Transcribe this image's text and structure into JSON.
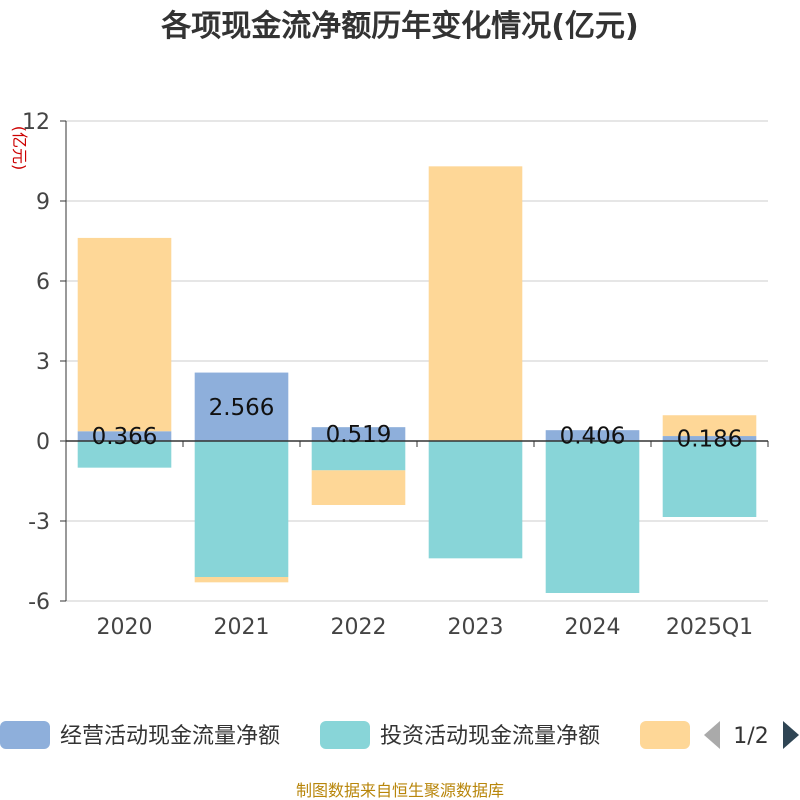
{
  "chart_data": {
    "type": "bar",
    "stacked": true,
    "title": "各项现金流净额历年变化情况(亿元)",
    "ylabel": "(亿元)",
    "categories": [
      "2020",
      "2021",
      "2022",
      "2023",
      "2024",
      "2025Q1"
    ],
    "ylim": [
      -6,
      12
    ],
    "yticks": [
      -6,
      -3,
      0,
      3,
      6,
      9,
      12
    ],
    "ytick_labels": [
      "-6",
      "-3",
      "0",
      "3",
      "6",
      "9",
      "12"
    ],
    "grid": true,
    "series": [
      {
        "name": "经营活动现金流量净额",
        "color": "#8eafdb",
        "values": [
          0.366,
          2.566,
          0.519,
          0.0,
          0.406,
          0.186
        ],
        "labels": [
          "0.366",
          "2.566",
          "0.519",
          "",
          "0.406",
          "0.186"
        ]
      },
      {
        "name": "投资活动现金流量净额",
        "color": "#88d5d8",
        "values": [
          -1.0,
          -5.1,
          -1.1,
          -4.4,
          -5.7,
          -2.85
        ]
      },
      {
        "name": "",
        "color": "#fed797",
        "values": [
          7.25,
          -0.2,
          -1.3,
          10.3,
          0.0,
          0.78
        ]
      }
    ],
    "legend_position": "bottom",
    "legend_page": "1/2"
  },
  "footer": {
    "source": "制图数据来自恒生聚源数据库"
  }
}
